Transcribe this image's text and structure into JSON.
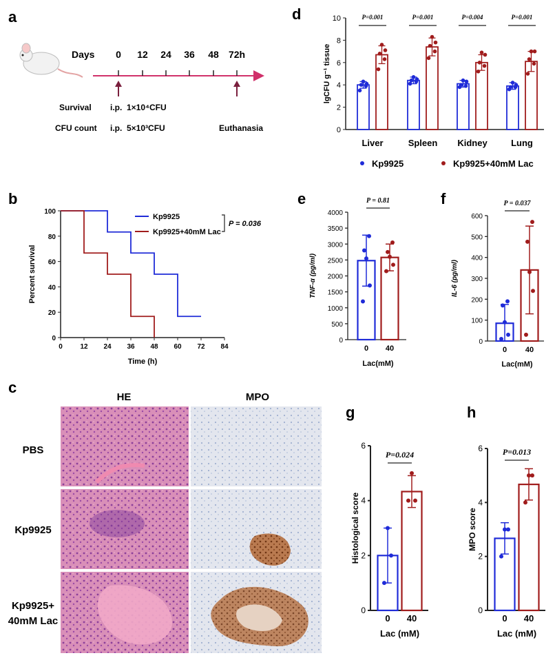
{
  "panels": {
    "a": "a",
    "b": "b",
    "c": "c",
    "d": "d",
    "e": "e",
    "f": "f",
    "g": "g",
    "h": "h"
  },
  "timeline": {
    "days_label": "Days",
    "ticks": [
      "0",
      "12",
      "24",
      "36",
      "48",
      "72h"
    ],
    "survival_label": "Survival",
    "survival_route": "i.p.",
    "survival_dose": "1×10⁴CFU",
    "cfu_label": "CFU count",
    "cfu_route": "i.p.",
    "cfu_dose": "5×10³CFU",
    "end_label": "Euthanasia",
    "colors": {
      "line": "#d0306a",
      "arrow": "#7a1f3d"
    }
  },
  "histology": {
    "col_he": "HE",
    "col_mpo": "MPO",
    "rows": [
      "PBS",
      "Kp9925",
      "Kp9925+",
      "40mM Lac"
    ]
  },
  "colors": {
    "blue": "#1f2bd8",
    "red": "#a01c1c"
  },
  "chart_data": [
    {
      "id": "b",
      "type": "line",
      "title": "",
      "xlabel": "Time (h)",
      "ylabel": "Percent survival",
      "xlim": [
        0,
        84
      ],
      "ylim": [
        0,
        100
      ],
      "xticks": [
        "0",
        "12",
        "24",
        "36",
        "48",
        "60",
        "72",
        "84"
      ],
      "yticks": [
        "0",
        "20",
        "40",
        "60",
        "80",
        "100"
      ],
      "series": [
        {
          "name": "Kp9925",
          "color": "#1f2bd8",
          "x": [
            0,
            24,
            24,
            36,
            36,
            48,
            48,
            60,
            60,
            72
          ],
          "y": [
            100,
            100,
            83.3,
            83.3,
            66.7,
            66.7,
            50,
            50,
            16.7,
            16.7
          ]
        },
        {
          "name": "Kp9925+40mM Lac",
          "color": "#a01c1c",
          "x": [
            0,
            12,
            12,
            24,
            24,
            36,
            36,
            48,
            48
          ],
          "y": [
            100,
            100,
            66.7,
            66.7,
            50,
            50,
            16.7,
            16.7,
            0
          ]
        }
      ],
      "annotation": "P = 0.036"
    },
    {
      "id": "d",
      "type": "bar",
      "ylabel": "lgCFU g⁻¹ tissue",
      "ylim": [
        0,
        10
      ],
      "yticks": [
        "0",
        "2",
        "4",
        "6",
        "8",
        "10"
      ],
      "categories": [
        "Liver",
        "Spleen",
        "Kidney",
        "Lung"
      ],
      "pvalues": [
        "P=0.001",
        "P=0.001",
        "P=0.004",
        "P=0.001"
      ],
      "series": [
        {
          "name": "Kp9925",
          "color": "#1f2bd8",
          "values": [
            4.0,
            4.4,
            4.1,
            3.9
          ],
          "sd": [
            0.3,
            0.3,
            0.3,
            0.3
          ],
          "points": [
            [
              3.5,
              3.9,
              4.0,
              4.1,
              4.3
            ],
            [
              4.1,
              4.3,
              4.4,
              4.5,
              4.7
            ],
            [
              3.8,
              3.9,
              4.0,
              4.3,
              4.4
            ],
            [
              3.6,
              3.8,
              3.8,
              4.0,
              4.2
            ]
          ]
        },
        {
          "name": "Kp9925+40mM Lac",
          "color": "#a01c1c",
          "values": [
            6.7,
            7.4,
            6.0,
            6.1
          ],
          "sd": [
            0.8,
            0.8,
            0.7,
            0.9
          ],
          "points": [
            [
              5.4,
              6.3,
              6.8,
              7.1,
              7.6
            ],
            [
              6.4,
              7.0,
              7.5,
              7.8,
              8.3
            ],
            [
              5.2,
              5.7,
              6.0,
              6.7,
              6.9
            ],
            [
              5.0,
              5.9,
              6.3,
              7.0,
              7.0
            ]
          ]
        }
      ],
      "legend": [
        "Kp9925",
        "Kp9925+40mM Lac"
      ]
    },
    {
      "id": "e",
      "type": "bar",
      "ylabel": "TNF-α (pg/ml)",
      "xlabel": "Lac(mM)",
      "categories": [
        "0",
        "40"
      ],
      "ylim": [
        0,
        4000
      ],
      "yticks": [
        "0",
        "500",
        "1000",
        "1500",
        "2000",
        "2500",
        "3000",
        "3500",
        "4000"
      ],
      "values": [
        2480,
        2580
      ],
      "sd": [
        800,
        420
      ],
      "points": [
        [
          1200,
          1700,
          2550,
          2800,
          3250
        ],
        [
          2150,
          2350,
          2600,
          2750,
          3050
        ]
      ],
      "colors": [
        "#1f2bd8",
        "#a01c1c"
      ],
      "pvalue": "P = 0.81"
    },
    {
      "id": "f",
      "type": "bar",
      "ylabel": "IL-6 (pg/ml)",
      "xlabel": "Lac(mM)",
      "categories": [
        "0",
        "40"
      ],
      "ylim": [
        0,
        600
      ],
      "yticks": [
        "0",
        "100",
        "200",
        "300",
        "400",
        "500",
        "600"
      ],
      "values": [
        85,
        340
      ],
      "sd": [
        90,
        210
      ],
      "points": [
        [
          10,
          30,
          90,
          170,
          190
        ],
        [
          30,
          240,
          330,
          475,
          570
        ]
      ],
      "colors": [
        "#1f2bd8",
        "#a01c1c"
      ],
      "pvalue": "P = 0.037"
    },
    {
      "id": "g",
      "type": "bar",
      "ylabel": "Histological score",
      "xlabel": "Lac (mM)",
      "categories": [
        "0",
        "40"
      ],
      "ylim": [
        0,
        6
      ],
      "yticks": [
        "0",
        "2",
        "4",
        "6"
      ],
      "values": [
        2.0,
        4.33
      ],
      "sd": [
        1.0,
        0.58
      ],
      "points": [
        [
          1,
          2,
          3
        ],
        [
          4,
          4,
          5
        ]
      ],
      "colors": [
        "#1f2bd8",
        "#a01c1c"
      ],
      "pvalue": "P=0.024"
    },
    {
      "id": "h",
      "type": "bar",
      "ylabel": "MPO score",
      "xlabel": "Lac (mM)",
      "categories": [
        "0",
        "40"
      ],
      "ylim": [
        0,
        6
      ],
      "yticks": [
        "0",
        "2",
        "4",
        "6"
      ],
      "values": [
        2.67,
        4.67
      ],
      "sd": [
        0.58,
        0.58
      ],
      "points": [
        [
          2,
          3,
          3
        ],
        [
          4,
          5,
          5
        ]
      ],
      "colors": [
        "#1f2bd8",
        "#a01c1c"
      ],
      "pvalue": "P=0.013"
    }
  ]
}
